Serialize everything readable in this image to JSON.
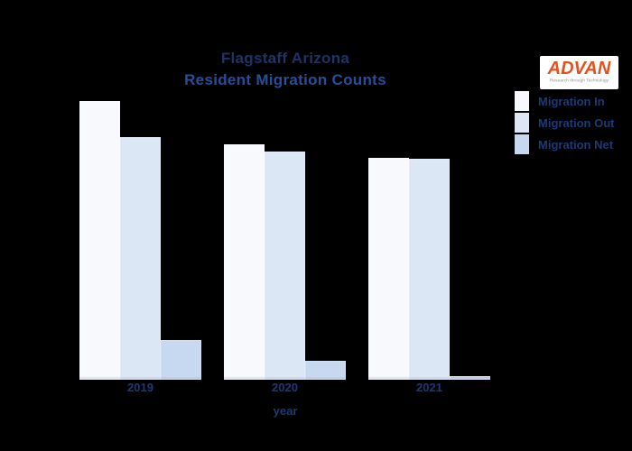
{
  "canvas": {
    "background": "#000000"
  },
  "title": {
    "line1": "Flagstaff Arizona",
    "line2": "Resident Migration Counts",
    "line1_color": "#1d3566",
    "line2_color": "#2a4d9b"
  },
  "logo": {
    "text": "ADVAN",
    "tagline": "Research through Technology",
    "text_color": "#e2511f",
    "tagline_color": "#8f8f8f",
    "background": "#ffffff"
  },
  "axis": {
    "text_color": "#1c3a74"
  },
  "chart_data": {
    "type": "bar",
    "title": "Flagstaff Arizona - Resident Migration Counts",
    "categories": [
      "2019",
      "2020",
      "2021"
    ],
    "series": [
      {
        "name": "Migration In",
        "color": "#f7f9fd",
        "values": [
          100,
          84.5,
          79.6
        ]
      },
      {
        "name": "Migration Out",
        "color": "#dce7f6",
        "values": [
          87.1,
          81.9,
          79.3
        ]
      },
      {
        "name": "Migration Net",
        "color": "#c6d9f1",
        "values": [
          14.2,
          6.8,
          1.3
        ]
      }
    ],
    "xlabel": "year",
    "ylabel": "",
    "ylim": [
      0,
      105
    ],
    "note": "source chart has no y-axis tick labels or gridlines; values are relative units where the tallest bar (Migration In, 2019) = 100",
    "grid": false,
    "legend_position": "upper-right"
  }
}
